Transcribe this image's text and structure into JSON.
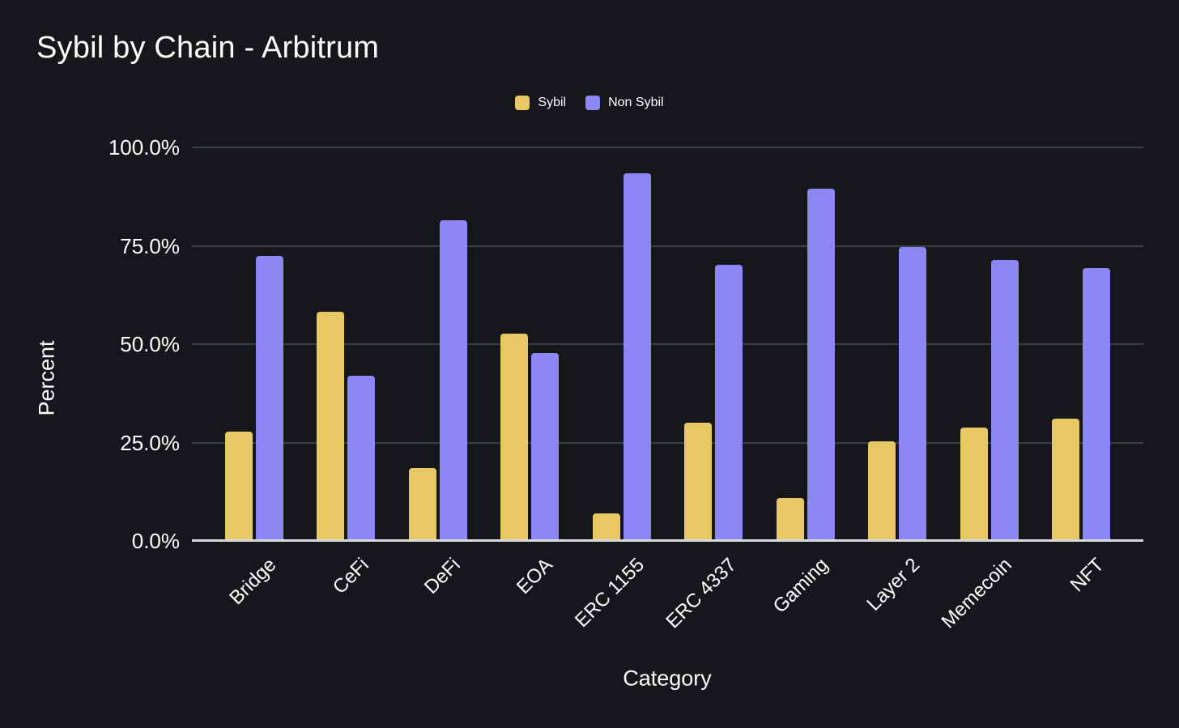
{
  "page": {
    "background_color": "#15171B",
    "text_color": "#ffffff",
    "gridline_color": "#3B3F46",
    "axis_line_color": "#D9DADB"
  },
  "chart_data": {
    "type": "bar",
    "title": "Sybil by Chain - Arbitrum",
    "xlabel": "Category",
    "ylabel": "Percent",
    "ylim": [
      0,
      100
    ],
    "grid": true,
    "legend_position": "top-center",
    "yticks": [
      {
        "label": "0.0%",
        "value": 0
      },
      {
        "label": "25.0%",
        "value": 25
      },
      {
        "label": "50.0%",
        "value": 50
      },
      {
        "label": "75.0%",
        "value": 75
      },
      {
        "label": "100.0%",
        "value": 100
      }
    ],
    "categories": [
      "Bridge",
      "CeFi",
      "DeFi",
      "EOA",
      "ERC 1155",
      "ERC 4337",
      "Gaming",
      "Layer 2",
      "Memecoin",
      "NFT"
    ],
    "series": [
      {
        "name": "Sybil",
        "color": "#E8C865",
        "values": [
          27.5,
          58.0,
          18.2,
          52.5,
          6.6,
          29.7,
          10.6,
          25.1,
          28.6,
          30.7
        ]
      },
      {
        "name": "Non Sybil",
        "color": "#8D87F5",
        "values": [
          72.4,
          41.8,
          81.5,
          47.5,
          93.4,
          70.0,
          89.4,
          74.6,
          71.2,
          69.3
        ]
      }
    ]
  }
}
